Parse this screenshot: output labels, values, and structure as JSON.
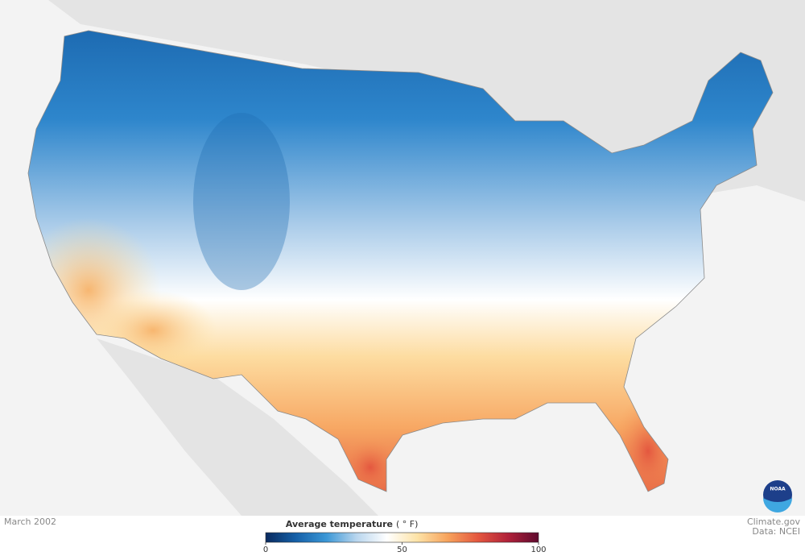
{
  "date_label": "March 2002",
  "credit": {
    "site": "Climate.gov",
    "source": "Data: NCEI",
    "logo": "NOAA"
  },
  "colorbar": {
    "title": "Average temperature",
    "unit": "( ° F)",
    "range": [
      0,
      100
    ],
    "ticks": [
      0,
      50,
      100
    ],
    "colors": [
      "#0a2a5e",
      "#1560a8",
      "#3b97d6",
      "#b9d6ee",
      "#ffffff",
      "#fde3a7",
      "#f7a35c",
      "#e4573f",
      "#b0213a",
      "#5e0a2e"
    ]
  }
}
